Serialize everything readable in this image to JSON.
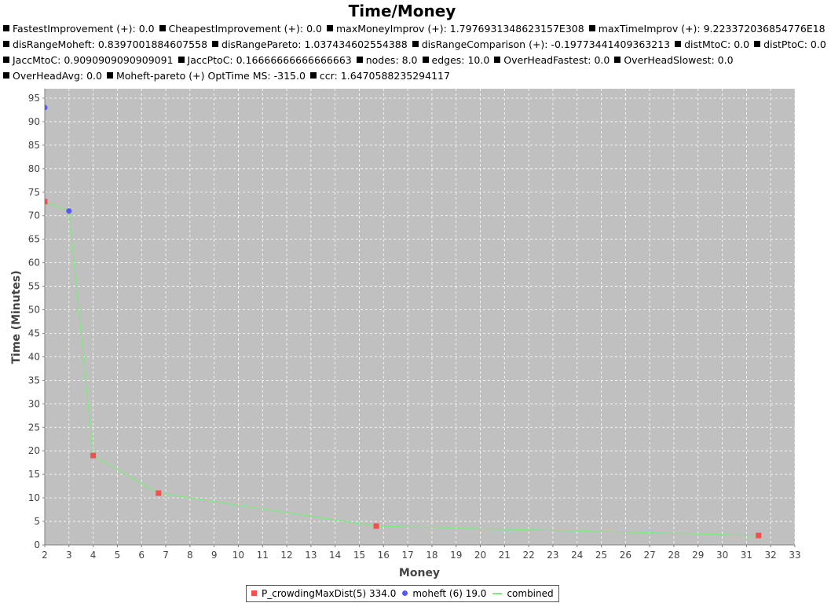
{
  "chart_data": {
    "type": "scatter",
    "title": "Time/Money",
    "xlabel": "Money",
    "ylabel": "Time (Minutes)",
    "xlim": [
      2,
      33
    ],
    "ylim": [
      0,
      97
    ],
    "x_ticks": [
      2,
      3,
      4,
      5,
      6,
      7,
      8,
      9,
      10,
      11,
      12,
      13,
      14,
      15,
      16,
      17,
      18,
      19,
      20,
      21,
      22,
      23,
      24,
      25,
      26,
      27,
      28,
      29,
      30,
      31,
      32,
      33
    ],
    "y_ticks": [
      0,
      5,
      10,
      15,
      20,
      25,
      30,
      35,
      40,
      45,
      50,
      55,
      60,
      65,
      70,
      75,
      80,
      85,
      90,
      95
    ],
    "grid": true,
    "legend_position": "bottom",
    "series": [
      {
        "name": "P_crowdingMaxDist(5) 334.0",
        "marker": "square",
        "color": "#f05050",
        "points": [
          {
            "x": 2.0,
            "y": 73
          },
          {
            "x": 4.0,
            "y": 19
          },
          {
            "x": 6.7,
            "y": 11
          },
          {
            "x": 15.7,
            "y": 4
          },
          {
            "x": 31.5,
            "y": 2
          }
        ]
      },
      {
        "name": "moheft (6) 19.0",
        "marker": "circle",
        "color": "#5858f8",
        "points": [
          {
            "x": 2.0,
            "y": 93
          },
          {
            "x": 3.0,
            "y": 71
          }
        ]
      },
      {
        "name": "combined",
        "marker": "line",
        "color": "#80e880",
        "points": [
          {
            "x": 2.0,
            "y": 73
          },
          {
            "x": 3.0,
            "y": 71
          },
          {
            "x": 4.0,
            "y": 19
          },
          {
            "x": 6.7,
            "y": 11
          },
          {
            "x": 15.7,
            "y": 4
          },
          {
            "x": 31.5,
            "y": 2
          }
        ]
      }
    ]
  },
  "stats": [
    [
      "FastestImprovement (+): 0.0",
      "CheapestImprovement (+): 0.0",
      "maxMoneyImprov (+): 1.7976931348623157E308",
      "maxTimeImprov (+): 9.223372036854776E18"
    ],
    [
      "disRangeMoheft: 0.8397001884607558",
      "disRangePareto: 1.037434602554388",
      "disRangeComparison (+): -0.19773441409363213",
      "distMtoC: 0.0",
      "distPtoC: 0.0"
    ],
    [
      "JaccMtoC: 0.9090909090909091",
      "JaccPtoC: 0.16666666666666663",
      "nodes: 8.0",
      "edges: 10.0",
      "OverHeadFastest: 0.0",
      "OverHeadSlowest: 0.0"
    ],
    [
      "OverHeadAvg: 0.0",
      "Moheft-pareto (+) OptTime MS: -315.0",
      "ccr: 1.6470588235294117"
    ]
  ],
  "colors": {
    "plot_background": "#c0c0c0",
    "grid": "#ffffff",
    "axis": "#808080"
  }
}
